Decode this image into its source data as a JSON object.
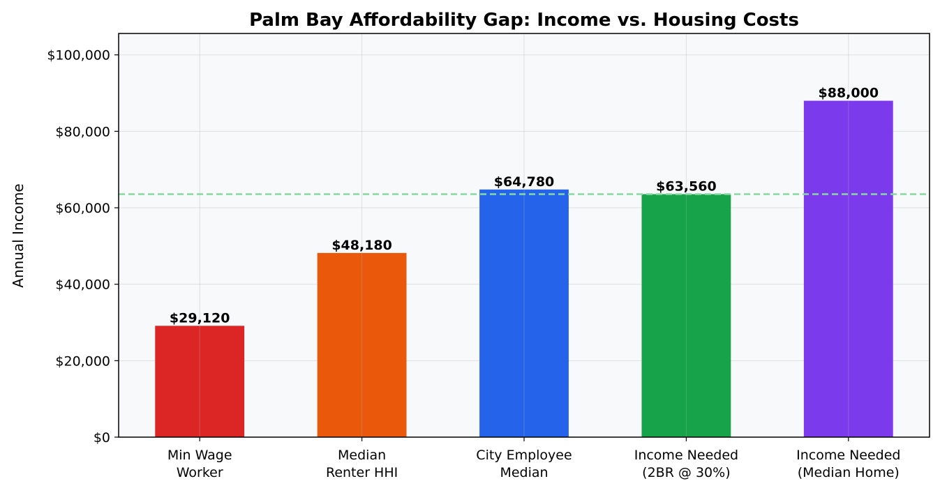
{
  "chart_data": {
    "type": "bar",
    "title": "Palm Bay Affordability Gap: Income vs. Housing Costs",
    "xlabel": "",
    "ylabel": "Annual Income",
    "categories": [
      [
        "Min Wage",
        "Worker"
      ],
      [
        "Median",
        "Renter HHI"
      ],
      [
        "City Employee",
        "Median"
      ],
      [
        "Income Needed",
        "(2BR @ 30%)"
      ],
      [
        "Income Needed",
        "(Median Home)"
      ]
    ],
    "values": [
      29120,
      48180,
      64780,
      63560,
      88000
    ],
    "value_labels": [
      "$29,120",
      "$48,180",
      "$64,780",
      "$63,560",
      "$88,000"
    ],
    "colors": [
      "#dc2626",
      "#ea580c",
      "#2563eb",
      "#16a34a",
      "#7c3aed"
    ],
    "ylim": [
      0,
      105600
    ],
    "yticks": [
      0,
      20000,
      40000,
      60000,
      80000,
      100000
    ],
    "ytick_labels": [
      "$0",
      "$20,000",
      "$40,000",
      "$60,000",
      "$80,000",
      "$100,000"
    ],
    "reference_line": {
      "value": 63560,
      "style": "dashed",
      "color": "#86d9a0"
    },
    "grid": true,
    "background": "#f8f9fb"
  }
}
